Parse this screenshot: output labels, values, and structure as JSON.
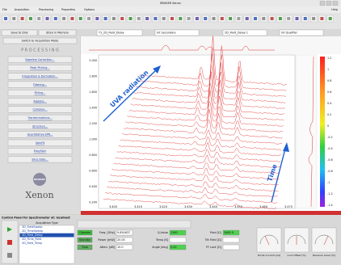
{
  "window": {
    "title": "BRUKER Xenon"
  },
  "menu": [
    "File",
    "Acquisition",
    "Processing",
    "Properties",
    "Options"
  ],
  "help": "Help",
  "toolbar2": {
    "save": "Save to Disk",
    "store": "Store in Memory",
    "primary": "T1_2D_Field_Delay",
    "secondary": "Int Secondary",
    "dataset": "2D_Field_Delay 1",
    "qualifier": "Int Qualifier"
  },
  "left": {
    "switch": "Switch to Acquisition Mode",
    "heading": "P R O C E S S I N G",
    "buttons": [
      "Baseline Correction...",
      "Peak Picking...",
      "Integration & Derivation...",
      "Filtering...",
      "Fitting...",
      "Algebra...",
      "Complex...",
      "Transformations...",
      "Structure...",
      "Quantitative EPR...",
      "SpinFit",
      "EasySpin",
      "Slice Data..."
    ],
    "brand": "BRUKER",
    "product": "Xenon"
  },
  "plot": {
    "yticks": [
      "2.000",
      "1.800",
      "1.600",
      "1.400",
      "1.200",
      "1.000",
      "0.800",
      "0.600",
      "0.400",
      "0.200"
    ],
    "xticks": [
      "3.400",
      "3.410",
      "3.420",
      "3.430",
      "3.440",
      "3.450",
      "3.460",
      "3.470"
    ],
    "colorbar": [
      "1.2",
      "1",
      "0.8",
      "0.6",
      "0.4",
      "0.2",
      "0",
      "-0.2",
      "-0.4",
      "-0.6",
      "-0.8",
      "-1",
      "-1.2",
      "-1.4"
    ],
    "annotations": [
      "UVA radiation",
      "Time"
    ],
    "status": [
      "Time [s]",
      "Integral [G, Primary]",
      "Field [G] Intensity []"
    ]
  },
  "control": {
    "title": "Control Panel for Spectrometer at: localhost",
    "acq_label": "Acquisition Type",
    "acq_types": [
      "2D_FieldSweep",
      "2D_TimeSweep",
      "2D_Field_Delay",
      "2D_Time_Field",
      "2D_Field_Temp"
    ],
    "states": [
      "Operate",
      "Standby",
      "Tune"
    ],
    "fields": [
      {
        "label": "Freq. [GHz]",
        "value": "9.854637"
      },
      {
        "label": "Q-Value",
        "value": "1360"
      },
      {
        "label": "Field [G]",
        "value": "3460 G"
      },
      {
        "label": "Power [mW]",
        "value": "20.00"
      },
      {
        "label": "Temp [K]",
        "value": ""
      },
      {
        "label": "Tilt Field [G]",
        "value": ""
      },
      {
        "label": "Atten. [dB]",
        "value": "10.0"
      },
      {
        "label": "Angle [deg]",
        "value": "0.00"
      },
      {
        "label": "FF Lock [G]",
        "value": ""
      }
    ],
    "meters": [
      "Diode Current [uA]",
      "Lock Offset [%]",
      "Receiver Level [%]"
    ]
  }
}
